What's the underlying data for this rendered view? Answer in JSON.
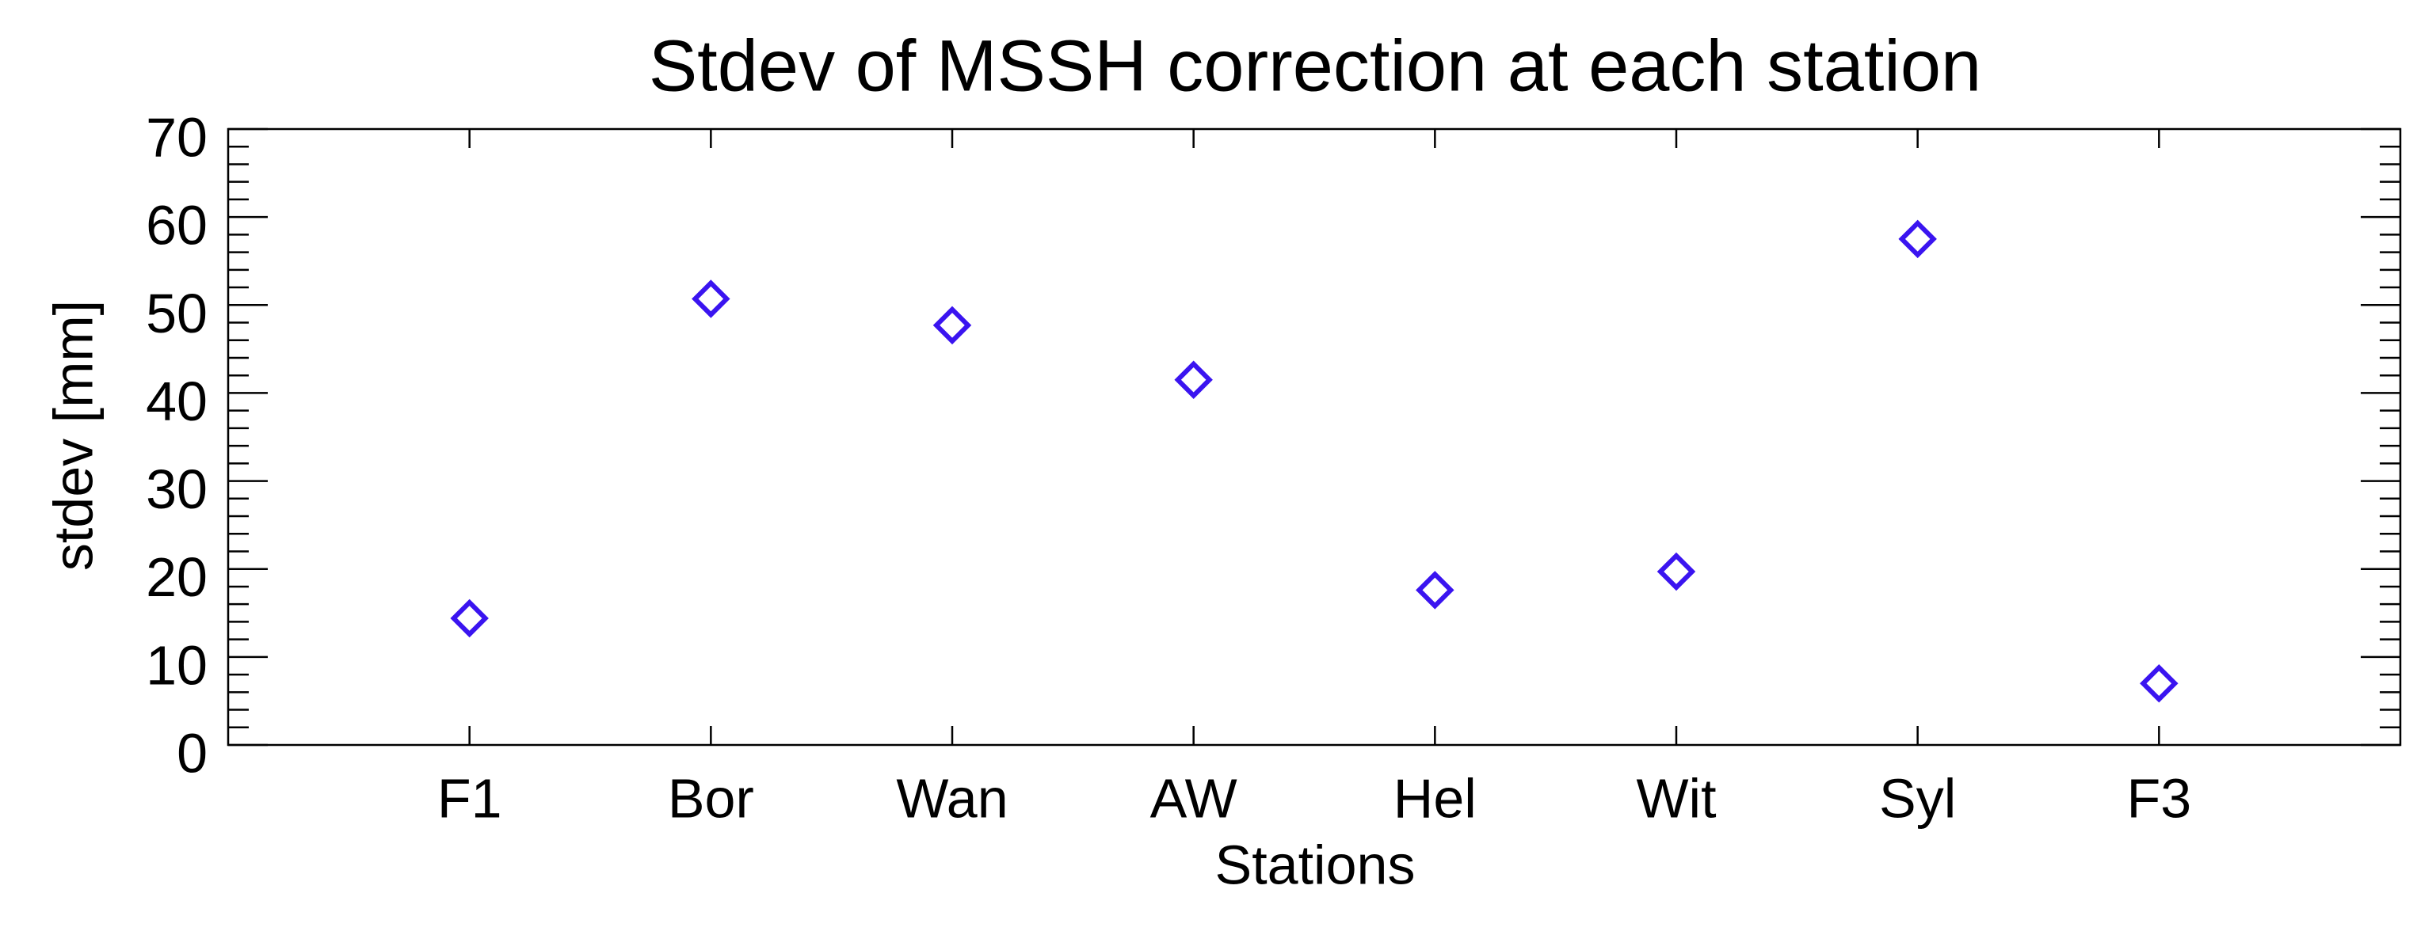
{
  "chart_data": {
    "type": "scatter",
    "title": "Stdev of MSSH correction at each station",
    "xlabel": "Stations",
    "ylabel": "stdev [mm]",
    "categories": [
      "F1",
      "Bor",
      "Wan",
      "AW",
      "Hel",
      "Wit",
      "Syl",
      "F3"
    ],
    "values": [
      14.4,
      50.7,
      47.7,
      41.5,
      17.6,
      19.7,
      57.5,
      7.0
    ],
    "color": "#3a14f0",
    "marker": "diamond",
    "ylim": [
      0,
      70
    ],
    "yticks": [
      0,
      10,
      20,
      30,
      40,
      50,
      60,
      70
    ],
    "grid": false
  }
}
